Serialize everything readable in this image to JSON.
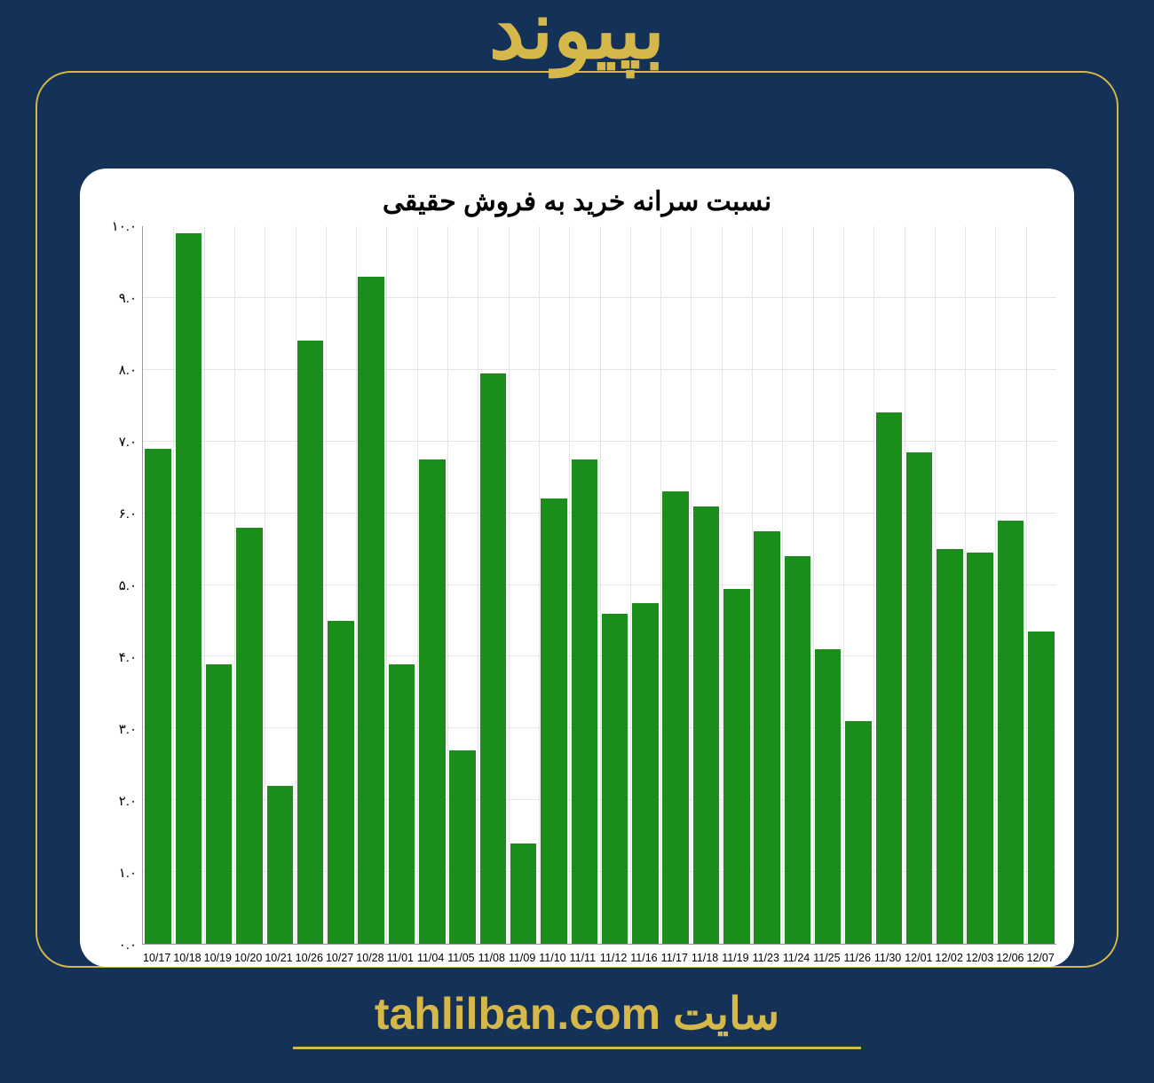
{
  "page": {
    "background_color": "#143258",
    "frame_border_color": "#d6b84a",
    "header_text": "بپیوند",
    "header_color": "#d6b84a",
    "header_fontsize": 90,
    "footer_text_prefix": "سایت",
    "footer_url": "tahlilban.com",
    "footer_color": "#d6b84a",
    "footer_fontsize": 50
  },
  "chart": {
    "type": "bar",
    "title": "نسبت سرانه خرید به فروش حقیقی",
    "title_fontsize": 30,
    "title_color": "#000000",
    "background_color": "#ffffff",
    "grid_color": "#e5e5e5",
    "axis_color": "#999999",
    "ylim": [
      0,
      10
    ],
    "ytick_step": 1.0,
    "ytick_labels": [
      "۰.۰",
      "۱.۰",
      "۲.۰",
      "۳.۰",
      "۴.۰",
      "۵.۰",
      "۶.۰",
      "۷.۰",
      "۸.۰",
      "۹.۰",
      "۱۰.۰"
    ],
    "tick_fontsize": 15,
    "bar_color": "#1a8d1a",
    "bar_width": 0.86,
    "categories": [
      "10/17",
      "10/18",
      "10/19",
      "10/20",
      "10/21",
      "10/26",
      "10/27",
      "10/28",
      "11/01",
      "11/04",
      "11/05",
      "11/08",
      "11/09",
      "11/10",
      "11/11",
      "11/12",
      "11/16",
      "11/17",
      "11/18",
      "11/19",
      "11/23",
      "11/24",
      "11/25",
      "11/26",
      "11/30",
      "12/01",
      "12/02",
      "12/03",
      "12/06",
      "12/07"
    ],
    "values": [
      6.9,
      9.9,
      3.9,
      5.8,
      2.2,
      8.4,
      4.5,
      9.3,
      3.9,
      6.75,
      2.7,
      7.95,
      1.4,
      6.2,
      6.75,
      4.6,
      4.75,
      6.3,
      6.1,
      4.95,
      5.75,
      5.4,
      4.1,
      3.1,
      7.4,
      6.85,
      5.5,
      5.45,
      5.9,
      4.35
    ],
    "x_tick_fontsize": 12.5
  }
}
